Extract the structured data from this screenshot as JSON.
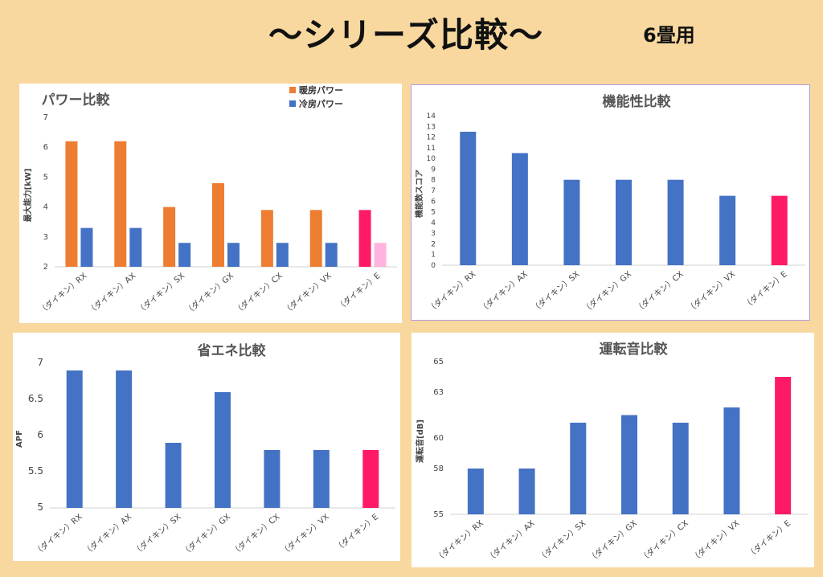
{
  "header": {
    "title": "〜シリーズ比較〜",
    "subtitle": "6畳用"
  },
  "colors": {
    "blue": "#4472c4",
    "orange": "#ed7d31",
    "pink": "#ff1a66",
    "light_pink": "#ffb3de"
  },
  "chart_data": [
    {
      "type": "bar",
      "title": "パワー比較",
      "ylabel": "最大能力[kW]",
      "xlabel": "",
      "categories": [
        "（ダイキン）RX",
        "（ダイキン）AX",
        "（ダイキン）SX",
        "（ダイキン）GX",
        "（ダイキン）CX",
        "（ダイキン）VX",
        "（ダイキン）E"
      ],
      "series": [
        {
          "name": "暖房パワー",
          "values": [
            6.2,
            6.2,
            4.0,
            4.8,
            3.9,
            3.9,
            3.9
          ]
        },
        {
          "name": "冷房パワー",
          "values": [
            3.3,
            3.3,
            2.8,
            2.8,
            2.8,
            2.8,
            2.8
          ]
        }
      ],
      "ylim": [
        2,
        7
      ],
      "yticks": [
        "2",
        "3",
        "4",
        "5",
        "6",
        "7"
      ],
      "legend": "top-right",
      "highlight": "last category in pink"
    },
    {
      "type": "bar",
      "title": "機能性比較",
      "ylabel": "機能数スコア",
      "xlabel": "",
      "categories": [
        "（ダイキン）RX",
        "（ダイキン）AX",
        "（ダイキン）SX",
        "（ダイキン）GX",
        "（ダイキン）CX",
        "（ダイキン）VX",
        "（ダイキン）E"
      ],
      "values": [
        12.5,
        10.5,
        8,
        8,
        8,
        6.5,
        6.5
      ],
      "ylim": [
        0,
        14
      ],
      "yticks": [
        "0",
        "1",
        "2",
        "3",
        "4",
        "5",
        "6",
        "7",
        "8",
        "9",
        "10",
        "11",
        "12",
        "13",
        "14"
      ],
      "highlight": "last category in pink"
    },
    {
      "type": "bar",
      "title": "省エネ比較",
      "ylabel": "APF",
      "xlabel": "",
      "categories": [
        "（ダイキン）RX",
        "（ダイキン）AX",
        "（ダイキン）SX",
        "（ダイキン）GX",
        "（ダイキン）CX",
        "（ダイキン）VX",
        "（ダイキン）E"
      ],
      "values": [
        6.9,
        6.9,
        5.9,
        6.6,
        5.8,
        5.8,
        5.8
      ],
      "ylim": [
        5,
        7
      ],
      "yticks": [
        "5",
        "5.5",
        "6",
        "6.5",
        "7"
      ],
      "highlight": "last category in pink"
    },
    {
      "type": "bar",
      "title": "運転音比較",
      "ylabel": "運転音[dB]",
      "xlabel": "",
      "categories": [
        "（ダイキン）RX",
        "（ダイキン）AX",
        "（ダイキン）SX",
        "（ダイキン）GX",
        "（ダイキン）CX",
        "（ダイキン）VX",
        "（ダイキン）E"
      ],
      "values": [
        58,
        58,
        61,
        61.5,
        61,
        62,
        64
      ],
      "ylim": [
        55,
        65
      ],
      "yticks": [
        "55",
        "58",
        "60",
        "63",
        "65"
      ],
      "highlight": "last category in pink"
    }
  ]
}
